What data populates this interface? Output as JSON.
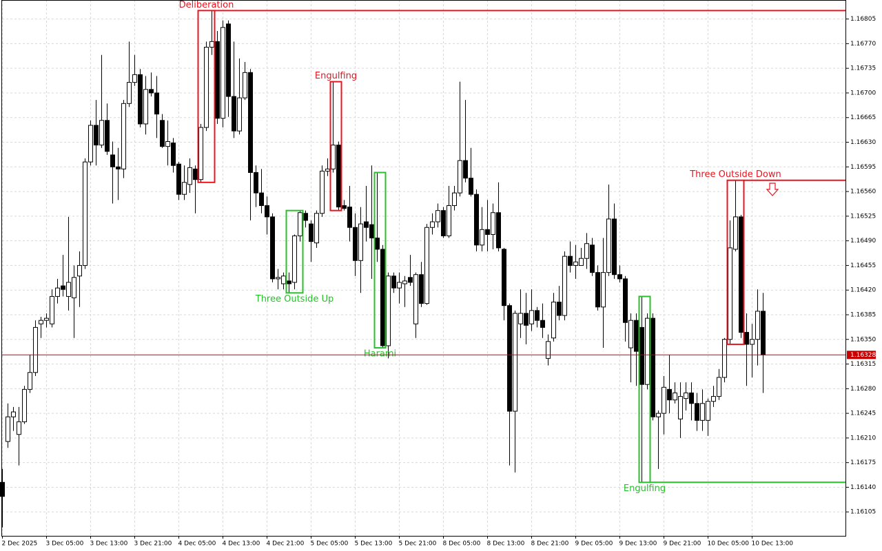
{
  "chart_data": {
    "type": "candlestick",
    "categories": [
      "2 Dec 2025",
      null,
      null,
      null,
      null,
      null,
      null,
      null,
      "3 Dec 05:00",
      null,
      null,
      null,
      null,
      null,
      null,
      null,
      "3 Dec 13:00",
      null,
      null,
      null,
      null,
      null,
      null,
      null,
      "3 Dec 21:00",
      null,
      null,
      null,
      null,
      null,
      null,
      null,
      "4 Dec 05:00",
      null,
      null,
      null,
      null,
      null,
      null,
      null,
      "4 Dec 13:00",
      null,
      null,
      null,
      null,
      null,
      null,
      null,
      "4 Dec 21:00",
      null,
      null,
      null,
      null,
      null,
      null,
      null,
      "5 Dec 05:00",
      null,
      null,
      null,
      null,
      null,
      null,
      null,
      "5 Dec 13:00",
      null,
      null,
      null,
      null,
      null,
      null,
      null,
      "5 Dec 21:00",
      null,
      null,
      null,
      null,
      null,
      null,
      null,
      "8 Dec 05:00",
      null,
      null,
      null,
      null,
      null,
      null,
      null,
      "8 Dec 13:00",
      null,
      null,
      null,
      null,
      null,
      null,
      null,
      "8 Dec 21:00",
      null,
      null,
      null,
      null,
      null,
      null,
      null,
      "9 Dec 05:00",
      null,
      null,
      null,
      null,
      null,
      null,
      null,
      "9 Dec 13:00",
      null,
      null,
      null,
      null,
      null,
      null,
      null,
      "9 Dec 21:00",
      null,
      null,
      null,
      null,
      null,
      null,
      null,
      "10 Dec 05:00",
      null,
      null,
      null,
      null,
      null,
      null,
      null,
      "10 Dec 13:00",
      null,
      null
    ],
    "open": [
      1.16147,
      1.16205,
      1.1624,
      1.16215,
      1.16233,
      1.16279,
      1.16303,
      1.16372,
      1.16377,
      1.16372,
      1.16411,
      1.16426,
      1.16411,
      1.16409,
      1.1644,
      1.16455,
      1.16602,
      1.16654,
      1.16626,
      1.16661,
      1.16612,
      1.16595,
      1.16592,
      1.16685,
      1.16715,
      1.16726,
      1.16656,
      1.16705,
      1.167,
      1.16661,
      1.16624,
      1.16629,
      1.16599,
      1.16556,
      1.1657,
      1.16592,
      1.16577,
      1.16651,
      1.16765,
      1.16773,
      1.16664,
      1.16798,
      1.16695,
      1.16646,
      1.16693,
      1.16729,
      1.16587,
      1.16558,
      1.1654,
      1.16524,
      1.16436,
      1.16429,
      1.16433,
      1.16431,
      1.16497,
      1.16529,
      1.16514,
      1.16487,
      1.16529,
      1.16589,
      1.16592,
      1.16626,
      1.1654,
      1.16538,
      1.16509,
      1.16462,
      1.16517,
      1.16513,
      1.16494,
      1.16478,
      1.16341,
      1.1644,
      1.16423,
      1.16429,
      1.16438,
      1.16372,
      1.16442,
      1.16401,
      1.16509,
      1.16517,
      1.16533,
      1.16497,
      1.1654,
      1.16558,
      1.16604,
      1.16579,
      1.16556,
      1.16484,
      1.16506,
      1.16499,
      1.1653,
      1.16478,
      1.16398,
      1.16248,
      1.16372,
      1.16387,
      1.16372,
      1.16391,
      1.16377,
      1.16323,
      1.16352,
      1.16403,
      1.16384,
      1.16468,
      1.16455,
      1.16455,
      1.16465,
      1.16484,
      1.16445,
      1.16396,
      1.16445,
      1.16521,
      1.16442,
      1.16436,
      1.16338,
      1.16377,
      1.16367,
      1.16286,
      1.1638,
      1.1624,
      1.16245,
      1.16279,
      1.16264,
      1.16237,
      1.16266,
      1.16274,
      1.16259,
      1.16235,
      1.16235,
      1.16262,
      1.16269,
      1.16296,
      1.1635,
      1.16478,
      1.16524,
      1.1636,
      1.16343,
      1.1635,
      1.1639
    ],
    "high": [
      1.16166,
      1.16259,
      1.16254,
      1.16254,
      1.16284,
      1.16328,
      1.16377,
      1.16382,
      1.16387,
      1.16421,
      1.16436,
      1.1647,
      1.16524,
      1.16455,
      1.16475,
      1.16607,
      1.16661,
      1.1669,
      1.16754,
      1.16685,
      1.16631,
      1.16622,
      1.1669,
      1.16773,
      1.16754,
      1.16734,
      1.16724,
      1.16729,
      1.16724,
      1.1667,
      1.16661,
      1.16636,
      1.16602,
      1.16597,
      1.16607,
      1.16597,
      1.16656,
      1.16773,
      1.16817,
      1.16788,
      1.16803,
      1.16803,
      1.16773,
      1.16749,
      1.16744,
      1.16734,
      1.16597,
      1.16592,
      1.16553,
      1.16529,
      1.1645,
      1.16445,
      1.16445,
      1.16499,
      1.16533,
      1.16533,
      1.16519,
      1.16533,
      1.16597,
      1.16607,
      1.16716,
      1.16631,
      1.16548,
      1.16568,
      1.16529,
      1.16538,
      1.16568,
      1.16597,
      1.16587,
      1.16484,
      1.16445,
      1.16445,
      1.16445,
      1.1644,
      1.1647,
      1.16445,
      1.1646,
      1.16514,
      1.16529,
      1.16543,
      1.16538,
      1.16568,
      1.16568,
      1.16716,
      1.1669,
      1.16622,
      1.16563,
      1.16538,
      1.16548,
      1.16543,
      1.16573,
      1.1648,
      1.16401,
      1.16391,
      1.16421,
      1.16416,
      1.16421,
      1.16396,
      1.16401,
      1.16357,
      1.16416,
      1.16426,
      1.16475,
      1.16489,
      1.16484,
      1.1648,
      1.16501,
      1.16494,
      1.16455,
      1.16494,
      1.1657,
      1.16543,
      1.16455,
      1.1644,
      1.16387,
      1.16387,
      1.16411,
      1.16387,
      1.16387,
      1.16249,
      1.16298,
      1.16328,
      1.16289,
      1.16289,
      1.16289,
      1.16289,
      1.16274,
      1.16279,
      1.16266,
      1.16284,
      1.16308,
      1.16352,
      1.16519,
      1.16576,
      1.16527,
      1.16387,
      1.16372,
      1.16421,
      1.16416
    ],
    "low": [
      1.16083,
      1.16196,
      1.1622,
      1.16171,
      1.1623,
      1.16274,
      1.16298,
      1.16352,
      1.16367,
      1.16367,
      1.16401,
      1.16411,
      1.16391,
      1.16352,
      1.16396,
      1.1645,
      1.16597,
      1.16597,
      1.16622,
      1.16612,
      1.16543,
      1.16548,
      1.16579,
      1.1668,
      1.1671,
      1.16651,
      1.16641,
      1.16695,
      1.16636,
      1.16622,
      1.16597,
      1.16587,
      1.16548,
      1.16548,
      1.16558,
      1.16529,
      1.16573,
      1.16646,
      1.16754,
      1.16656,
      1.16651,
      1.16666,
      1.16636,
      1.16641,
      1.1669,
      1.16519,
      1.16538,
      1.16529,
      1.16499,
      1.16431,
      1.16421,
      1.16421,
      1.16416,
      1.16421,
      1.16489,
      1.16509,
      1.1646,
      1.1648,
      1.16524,
      1.16582,
      1.16587,
      1.16533,
      1.16533,
      1.16489,
      1.1644,
      1.16416,
      1.16489,
      1.16436,
      1.1646,
      1.16338,
      1.16323,
      1.16416,
      1.16401,
      1.16396,
      1.16426,
      1.16352,
      1.16396,
      1.16399,
      1.16499,
      1.16509,
      1.16494,
      1.16494,
      1.16533,
      1.16553,
      1.16573,
      1.16553,
      1.16475,
      1.16475,
      1.16475,
      1.16478,
      1.16475,
      1.16377,
      1.16171,
      1.16161,
      1.16352,
      1.16343,
      1.16362,
      1.16367,
      1.16352,
      1.16313,
      1.16347,
      1.16377,
      1.16377,
      1.16445,
      1.16436,
      1.16455,
      1.1645,
      1.1644,
      1.16391,
      1.16338,
      1.1644,
      1.16436,
      1.16431,
      1.16347,
      1.16289,
      1.16284,
      1.16147,
      1.16279,
      1.16235,
      1.16166,
      1.16215,
      1.16245,
      1.16259,
      1.1621,
      1.16249,
      1.16235,
      1.1622,
      1.1622,
      1.16213,
      1.16254,
      1.16264,
      1.16289,
      1.16343,
      1.16475,
      1.16352,
      1.16284,
      1.16296,
      1.16313,
      1.16274
    ],
    "close": [
      1.16127,
      1.1624,
      1.16247,
      1.16233,
      1.16279,
      1.16303,
      1.16367,
      1.16377,
      1.1638,
      1.16411,
      1.16423,
      1.16421,
      1.16431,
      1.16438,
      1.16455,
      1.16602,
      1.16654,
      1.16626,
      1.16661,
      1.16617,
      1.16595,
      1.16592,
      1.16685,
      1.16715,
      1.16726,
      1.16656,
      1.16705,
      1.167,
      1.1667,
      1.16624,
      1.16631,
      1.16597,
      1.16556,
      1.16573,
      1.16594,
      1.16577,
      1.16651,
      1.16765,
      1.16773,
      1.16664,
      1.16793,
      1.16695,
      1.16646,
      1.16693,
      1.16729,
      1.16587,
      1.16558,
      1.1654,
      1.16524,
      1.16436,
      1.16438,
      1.1644,
      1.16429,
      1.16497,
      1.1653,
      1.16519,
      1.16489,
      1.16529,
      1.16589,
      1.16592,
      1.16626,
      1.16538,
      1.16536,
      1.16509,
      1.16462,
      1.16514,
      1.16509,
      1.16494,
      1.16478,
      1.16341,
      1.1644,
      1.16423,
      1.16431,
      1.16433,
      1.16431,
      1.16442,
      1.16401,
      1.16509,
      1.16517,
      1.16533,
      1.16497,
      1.1654,
      1.16558,
      1.16604,
      1.16579,
      1.16556,
      1.16484,
      1.16506,
      1.16499,
      1.1653,
      1.1648,
      1.16398,
      1.16248,
      1.16387,
      1.16387,
      1.1637,
      1.16391,
      1.16377,
      1.16367,
      1.16347,
      1.16403,
      1.16384,
      1.16468,
      1.16455,
      1.1646,
      1.16465,
      1.16486,
      1.16445,
      1.16396,
      1.16445,
      1.16521,
      1.16442,
      1.16436,
      1.16374,
      1.16377,
      1.16333,
      1.16286,
      1.1638,
      1.1624,
      1.16245,
      1.16282,
      1.16264,
      1.16274,
      1.16269,
      1.16274,
      1.16259,
      1.16235,
      1.16259,
      1.16262,
      1.16269,
      1.16296,
      1.1635,
      1.1648,
      1.16524,
      1.1636,
      1.16343,
      1.1635,
      1.1639,
      1.16328
    ],
    "up_color": "#ffffff",
    "down_color": "#000000",
    "ylim": [
      1.16071,
      1.16832
    ],
    "yticks": [
      1.16805,
      {
        "value": 1.1677,
        "label": "1.16770"
      },
      1.16735,
      {
        "value": 1.167,
        "label": "1.16700"
      },
      1.16665,
      {
        "value": 1.1663,
        "label": "1.16630"
      },
      1.16595,
      {
        "value": 1.1656,
        "label": "1.16560"
      },
      1.16525,
      {
        "value": 1.1649,
        "label": "1.16490"
      },
      1.16455,
      {
        "value": 1.1642,
        "label": "1.16420"
      },
      1.16385,
      {
        "value": 1.1635,
        "label": "1.16350"
      },
      1.16315,
      {
        "value": 1.1628,
        "label": "1.16280"
      },
      1.16245,
      {
        "value": 1.1621,
        "label": "1.16210"
      },
      1.16175,
      {
        "value": 1.1614,
        "label": "1.16140"
      },
      1.16105
    ],
    "grid": true,
    "current_price": 1.16328,
    "current_price_color": "#c80000",
    "annotations": [
      {
        "label": "Deliberation",
        "color": "#e8141e",
        "candles": [
          36,
          38
        ],
        "label_side": "above",
        "level": "high"
      },
      {
        "label": "Engulfing",
        "color": "#e8141e",
        "candles": [
          60,
          61
        ],
        "label_side": "above"
      },
      {
        "label": "Three Outside Up",
        "color": "#27c12b",
        "candles": [
          52,
          54
        ],
        "label_side": "below"
      },
      {
        "label": "Harami",
        "color": "#27c12b",
        "candles": [
          68,
          69
        ],
        "label_side": "below"
      },
      {
        "label": "Engulfing",
        "color": "#27c12b",
        "candles": [
          116,
          117
        ],
        "label_side": "below",
        "level": "low"
      },
      {
        "label": "Three Outside Down",
        "color": "#e8141e",
        "candles": [
          132,
          134
        ],
        "label_side": "above",
        "level": "high"
      }
    ]
  }
}
